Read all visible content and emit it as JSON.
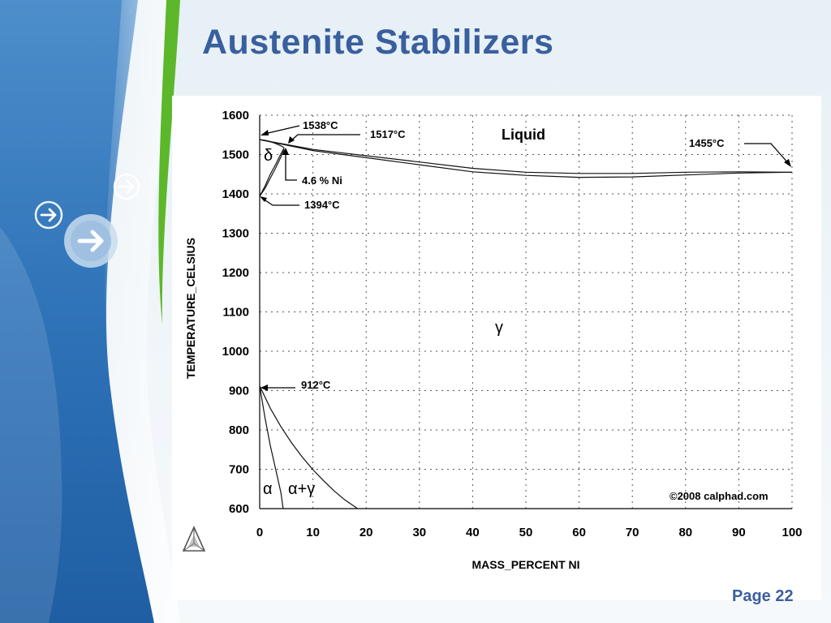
{
  "slide": {
    "title": "Austenite Stabilizers",
    "page_label": "Page 22",
    "accent_color": "#3a5f9e",
    "decor_icons": [
      "arrow-circle-icon",
      "arrow-circle-icon",
      "arrow-circle-icon"
    ]
  },
  "chart_data": {
    "type": "line",
    "title": "",
    "xlabel": "MASS_PERCENT NI",
    "ylabel": "TEMPERATURE_CELSIUS",
    "xlim": [
      0,
      100
    ],
    "ylim": [
      600,
      1600
    ],
    "x_ticks": [
      0,
      10,
      20,
      30,
      40,
      50,
      60,
      70,
      80,
      90,
      100
    ],
    "y_ticks": [
      600,
      700,
      800,
      900,
      1000,
      1100,
      1200,
      1300,
      1400,
      1500,
      1600
    ],
    "grid": true,
    "series": [
      {
        "x": [
          0,
          10,
          20,
          30,
          40,
          50,
          60,
          70,
          80,
          90,
          100
        ],
        "y": [
          1538,
          1513,
          1497,
          1481,
          1465,
          1455,
          1452,
          1452,
          1455,
          1456,
          1455
        ]
      },
      {
        "x": [
          0,
          10,
          20,
          30,
          40,
          50,
          60,
          70,
          80,
          90,
          100
        ],
        "y": [
          1538,
          1510,
          1492,
          1474,
          1456,
          1447,
          1442,
          1443,
          1448,
          1453,
          1455
        ]
      },
      {
        "x": [
          0,
          1,
          2,
          3,
          4,
          4.6
        ],
        "y": [
          1394,
          1420,
          1450,
          1475,
          1502,
          1517
        ]
      },
      {
        "x": [
          0,
          1,
          2,
          3,
          4,
          4.6
        ],
        "y": [
          1538,
          1536,
          1533,
          1528,
          1522,
          1517
        ]
      },
      {
        "x": [
          0,
          1,
          2,
          3,
          4,
          4.6
        ],
        "y": [
          1394,
          1414,
          1440,
          1466,
          1494,
          1513
        ]
      },
      {
        "x": [
          0,
          1,
          2,
          3,
          4,
          4.4
        ],
        "y": [
          912,
          830,
          760,
          700,
          640,
          600
        ]
      },
      {
        "x": [
          0,
          2,
          4,
          6,
          8,
          10,
          12,
          14,
          16,
          18.4
        ],
        "y": [
          912,
          855,
          808,
          767,
          731,
          699,
          671,
          645,
          622,
          600
        ]
      }
    ],
    "annotations": [
      {
        "text": "1538°C",
        "x": 0,
        "y": 1538
      },
      {
        "text": "1517°C",
        "x": 4.6,
        "y": 1517
      },
      {
        "text": "1455°C",
        "x": 100,
        "y": 1455
      },
      {
        "text": "4.6 % Ni",
        "x": 4.6,
        "y": 1517
      },
      {
        "text": "1394°C",
        "x": 0,
        "y": 1394
      },
      {
        "text": "912°C",
        "x": 0,
        "y": 912
      }
    ],
    "region_labels": [
      {
        "text": "Liquid",
        "x": 50,
        "y": 1550
      },
      {
        "text": "δ",
        "x": 1.3,
        "y": 1500
      },
      {
        "text": "γ",
        "x": 45,
        "y": 1060
      },
      {
        "text": "α",
        "x": 2,
        "y": 650
      },
      {
        "text": "α+γ",
        "x": 9.5,
        "y": 650
      }
    ],
    "copyright": "©2008 calphad.com"
  }
}
